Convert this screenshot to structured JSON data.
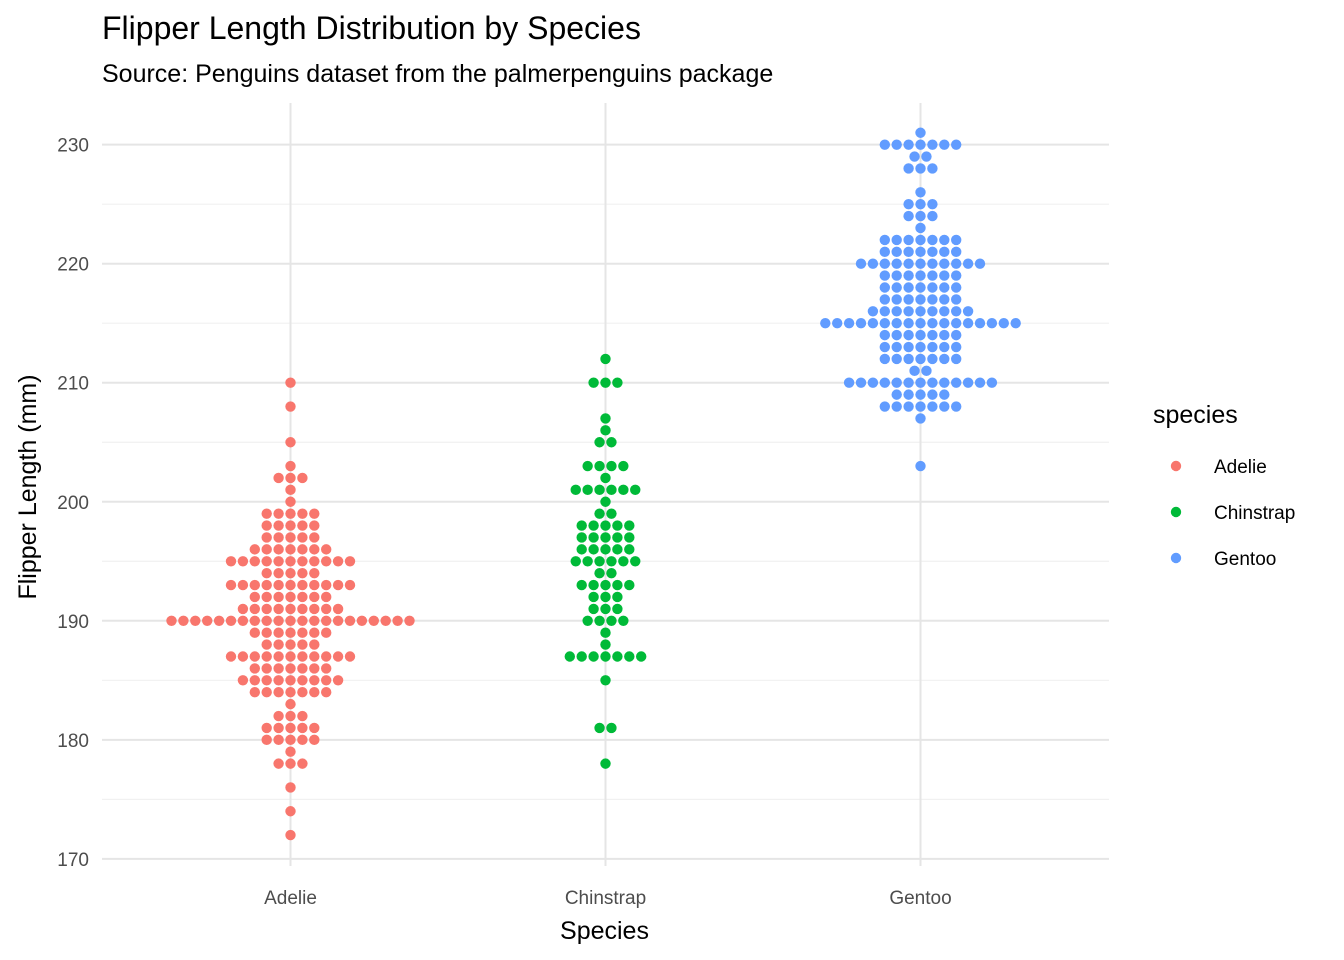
{
  "chart_data": {
    "type": "scatter",
    "title": "Flipper Length Distribution by Species",
    "subtitle": "Source: Penguins dataset from the palmerpenguins package",
    "xlabel": "Species",
    "ylabel": "Flipper Length (mm)",
    "categories": [
      "Adelie",
      "Chinstrap",
      "Gentoo"
    ],
    "ylim": [
      169.4,
      233.5
    ],
    "yticks": [
      170,
      180,
      190,
      200,
      210,
      220,
      230
    ],
    "ytick_labels": [
      "170",
      "180",
      "190",
      "200",
      "210",
      "220",
      "230"
    ],
    "grid": true,
    "legend": {
      "title": "species",
      "placement": "right",
      "entries": [
        "Adelie",
        "Chinstrap",
        "Gentoo"
      ]
    },
    "colors": {
      "Adelie": "#F8766D",
      "Chinstrap": "#00BA38",
      "Gentoo": "#619CFF"
    },
    "series": [
      {
        "name": "Adelie",
        "bins": [
          {
            "value": 172,
            "count": 1
          },
          {
            "value": 174,
            "count": 1
          },
          {
            "value": 176,
            "count": 1
          },
          {
            "value": 178,
            "count": 3
          },
          {
            "value": 179,
            "count": 1
          },
          {
            "value": 180,
            "count": 5
          },
          {
            "value": 181,
            "count": 5
          },
          {
            "value": 182,
            "count": 3
          },
          {
            "value": 183,
            "count": 1
          },
          {
            "value": 184,
            "count": 7
          },
          {
            "value": 185,
            "count": 9
          },
          {
            "value": 186,
            "count": 7
          },
          {
            "value": 187,
            "count": 11
          },
          {
            "value": 188,
            "count": 5
          },
          {
            "value": 189,
            "count": 7
          },
          {
            "value": 190,
            "count": 21
          },
          {
            "value": 191,
            "count": 9
          },
          {
            "value": 192,
            "count": 7
          },
          {
            "value": 193,
            "count": 11
          },
          {
            "value": 194,
            "count": 5
          },
          {
            "value": 195,
            "count": 11
          },
          {
            "value": 196,
            "count": 7
          },
          {
            "value": 197,
            "count": 5
          },
          {
            "value": 198,
            "count": 5
          },
          {
            "value": 199,
            "count": 5
          },
          {
            "value": 200,
            "count": 1
          },
          {
            "value": 201,
            "count": 1
          },
          {
            "value": 202,
            "count": 3
          },
          {
            "value": 203,
            "count": 1
          },
          {
            "value": 205,
            "count": 1
          },
          {
            "value": 208,
            "count": 1
          },
          {
            "value": 210,
            "count": 1
          }
        ]
      },
      {
        "name": "Chinstrap",
        "bins": [
          {
            "value": 178,
            "count": 1
          },
          {
            "value": 181,
            "count": 2
          },
          {
            "value": 185,
            "count": 1
          },
          {
            "value": 187,
            "count": 7
          },
          {
            "value": 188,
            "count": 1
          },
          {
            "value": 189,
            "count": 1
          },
          {
            "value": 190,
            "count": 4
          },
          {
            "value": 191,
            "count": 3
          },
          {
            "value": 192,
            "count": 3
          },
          {
            "value": 193,
            "count": 5
          },
          {
            "value": 194,
            "count": 2
          },
          {
            "value": 195,
            "count": 6
          },
          {
            "value": 196,
            "count": 5
          },
          {
            "value": 197,
            "count": 5
          },
          {
            "value": 198,
            "count": 5
          },
          {
            "value": 199,
            "count": 2
          },
          {
            "value": 200,
            "count": 1
          },
          {
            "value": 201,
            "count": 6
          },
          {
            "value": 202,
            "count": 1
          },
          {
            "value": 203,
            "count": 4
          },
          {
            "value": 205,
            "count": 2
          },
          {
            "value": 206,
            "count": 1
          },
          {
            "value": 207,
            "count": 1
          },
          {
            "value": 210,
            "count": 3
          },
          {
            "value": 212,
            "count": 1
          }
        ]
      },
      {
        "name": "Gentoo",
        "bins": [
          {
            "value": 203,
            "count": 1
          },
          {
            "value": 207,
            "count": 1
          },
          {
            "value": 208,
            "count": 7
          },
          {
            "value": 209,
            "count": 5
          },
          {
            "value": 210,
            "count": 13
          },
          {
            "value": 211,
            "count": 2
          },
          {
            "value": 212,
            "count": 7
          },
          {
            "value": 213,
            "count": 7
          },
          {
            "value": 214,
            "count": 7
          },
          {
            "value": 215,
            "count": 17
          },
          {
            "value": 216,
            "count": 9
          },
          {
            "value": 217,
            "count": 7
          },
          {
            "value": 218,
            "count": 7
          },
          {
            "value": 219,
            "count": 7
          },
          {
            "value": 220,
            "count": 11
          },
          {
            "value": 221,
            "count": 7
          },
          {
            "value": 222,
            "count": 7
          },
          {
            "value": 223,
            "count": 1
          },
          {
            "value": 224,
            "count": 3
          },
          {
            "value": 225,
            "count": 3
          },
          {
            "value": 226,
            "count": 1
          },
          {
            "value": 228,
            "count": 3
          },
          {
            "value": 229,
            "count": 2
          },
          {
            "value": 230,
            "count": 7
          },
          {
            "value": 231,
            "count": 1
          }
        ]
      }
    ]
  }
}
